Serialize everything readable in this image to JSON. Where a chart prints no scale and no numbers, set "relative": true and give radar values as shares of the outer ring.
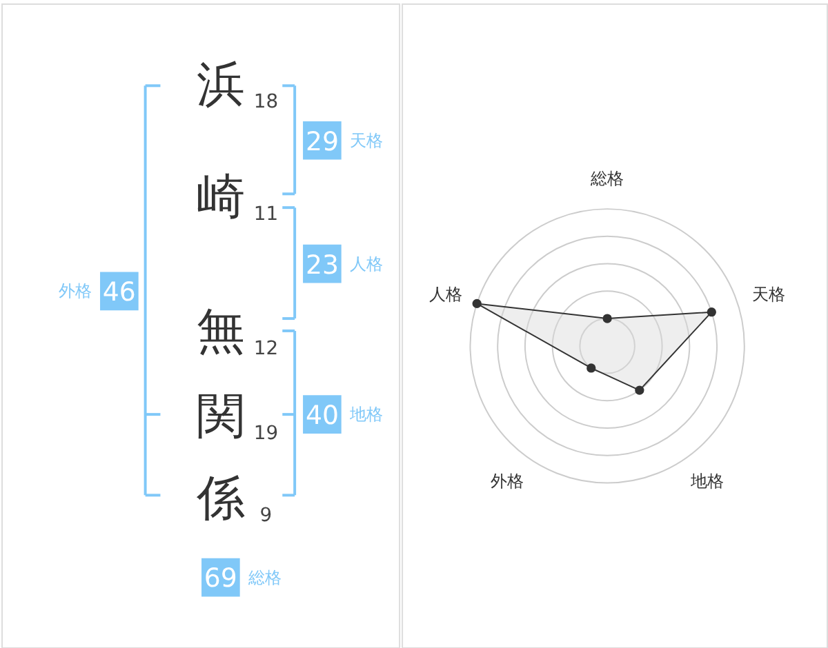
{
  "chart_data": [
    {
      "type": "other",
      "categories": [
        "浜",
        "崎",
        "無",
        "関",
        "係"
      ],
      "values": [
        18,
        11,
        12,
        19,
        9
      ],
      "data_labels": true
    },
    {
      "type": "other",
      "categories": [
        "天格",
        "人格",
        "地格",
        "外格",
        "総格"
      ],
      "values": [
        29,
        23,
        40,
        46,
        69
      ],
      "color": "#80c8f8",
      "data_labels": true
    },
    {
      "type": "radar",
      "categories": [
        "総格",
        "天格",
        "地格",
        "外格",
        "人格"
      ],
      "relative": true,
      "grid": true,
      "marker": "circle",
      "series": [
        {
          "color": "#333333",
          "values": [
            0.2,
            0.8,
            0.4,
            0.2,
            1.0
          ]
        }
      ]
    }
  ]
}
